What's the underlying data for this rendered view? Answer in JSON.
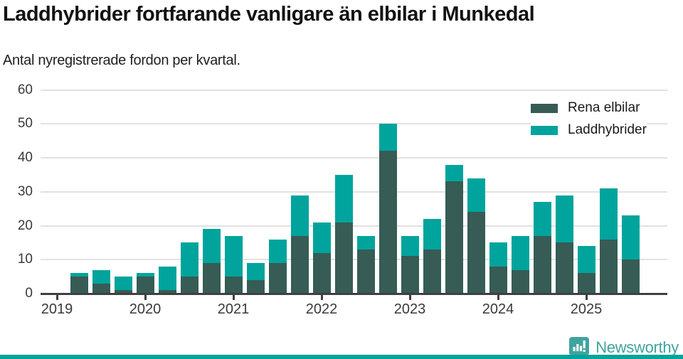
{
  "page": {
    "title": "Laddhybrider fortfarande vanligare än elbilar i Munkedal",
    "subtitle": "Antal nyregistrerade fordon per kvartal."
  },
  "colors": {
    "electric_dark": "#365C55",
    "hybrid_teal": "#00A49C",
    "brand_teal": "#40A49D",
    "axis": "#3F4040",
    "gridline": "#E2E2E2"
  },
  "legend": {
    "items": [
      {
        "label": "Rena elbilar",
        "color": "#365C55"
      },
      {
        "label": "Laddhybrider",
        "color": "#00A49C"
      }
    ]
  },
  "footer": {
    "brand_name": "Newsworthy"
  },
  "chart_data": {
    "type": "bar",
    "stacked": true,
    "title": "Laddhybrider fortfarande vanligare än elbilar i Munkedal",
    "subtitle": "Antal nyregistrerade fordon per kvartal.",
    "xlabel": "",
    "ylabel": "",
    "ylim": [
      0,
      60
    ],
    "yticks": [
      0,
      10,
      20,
      30,
      40,
      50,
      60
    ],
    "grid": true,
    "legend_position": "top-right",
    "categories": [
      "2019 Q1",
      "2019 Q2",
      "2019 Q3",
      "2019 Q4",
      "2020 Q1",
      "2020 Q2",
      "2020 Q3",
      "2020 Q4",
      "2021 Q1",
      "2021 Q2",
      "2021 Q3",
      "2021 Q4",
      "2022 Q1",
      "2022 Q2",
      "2022 Q3",
      "2022 Q4",
      "2023 Q1",
      "2023 Q2",
      "2023 Q3",
      "2023 Q4",
      "2024 Q1",
      "2024 Q2",
      "2024 Q3",
      "2024 Q4",
      "2025 Q1",
      "2025 Q2",
      "2025 Q3"
    ],
    "x_year_labels": [
      "2019",
      "2020",
      "2021",
      "2022",
      "2023",
      "2024",
      "2025"
    ],
    "series": [
      {
        "name": "Rena elbilar",
        "color": "#365C55",
        "values": [
          0,
          5,
          3,
          1,
          5,
          1,
          5,
          9,
          5,
          4,
          9,
          17,
          12,
          21,
          13,
          42,
          11,
          13,
          33,
          24,
          8,
          7,
          17,
          15,
          6,
          16,
          10
        ]
      },
      {
        "name": "Laddhybrider",
        "color": "#00A49C",
        "values": [
          0,
          1,
          4,
          4,
          1,
          7,
          10,
          10,
          12,
          5,
          7,
          12,
          9,
          14,
          4,
          8,
          6,
          9,
          5,
          10,
          7,
          10,
          10,
          14,
          8,
          15,
          13
        ]
      }
    ]
  }
}
